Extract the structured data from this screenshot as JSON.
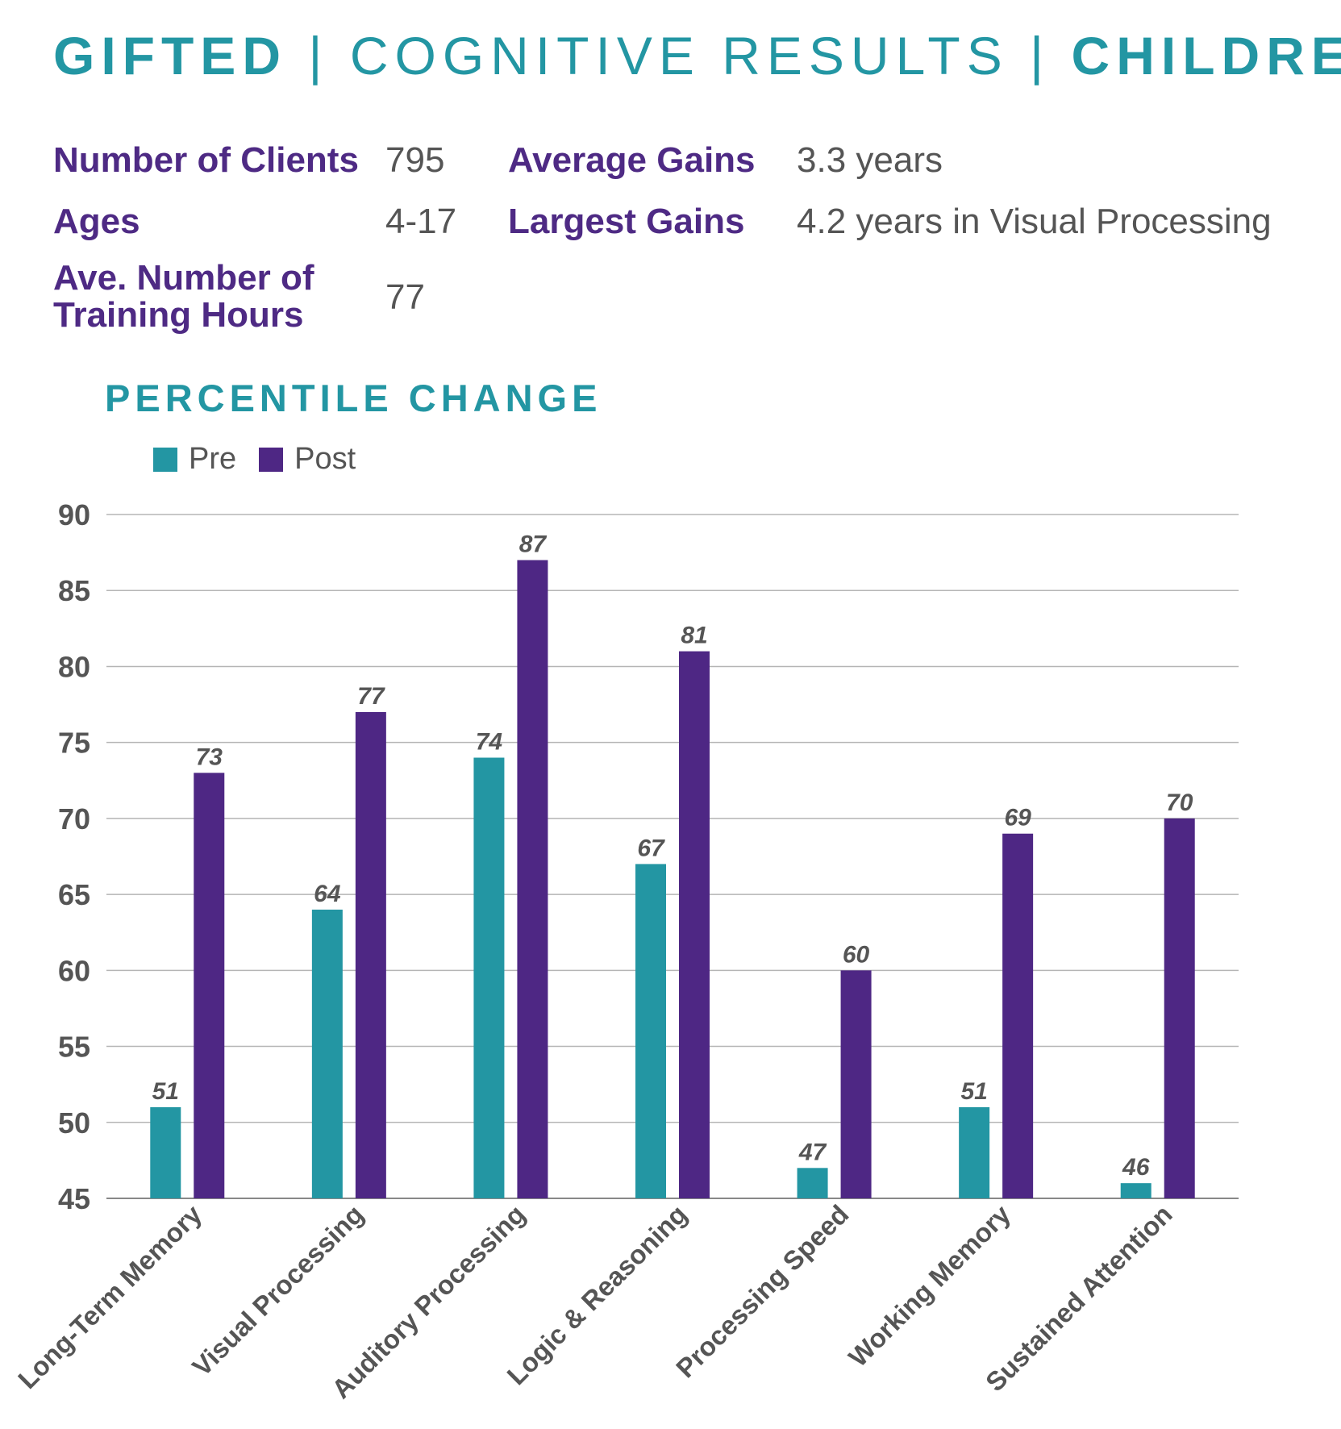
{
  "header": {
    "part1": "GIFTED",
    "sep1": " | ",
    "part2": "COGNITIVE RESULTS",
    "sep2": " | ",
    "part3": "CHILDREN"
  },
  "stats": {
    "clients_label": "Number of Clients",
    "clients_value": "795",
    "ages_label": "Ages",
    "ages_value": "4-17",
    "hours_label_line1": "Ave. Number of",
    "hours_label_line2": "Training Hours",
    "hours_value": "77",
    "avg_gains_label": "Average Gains",
    "avg_gains_value": "3.3 years",
    "largest_gains_label": "Largest Gains",
    "largest_gains_value": "4.2 years in Visual Processing"
  },
  "colors": {
    "pre": "#2396a3",
    "post": "#4e2784",
    "accent": "#2396a3",
    "label": "#4e2a84"
  },
  "chart_data": {
    "type": "bar",
    "title": "PERCENTILE CHANGE",
    "categories": [
      "Long-Term Memory",
      "Visual Processing",
      "Auditory Processing",
      "Logic & Reasoning",
      "Processing Speed",
      "Working Memory",
      "Sustained Attention"
    ],
    "series": [
      {
        "name": "Pre",
        "values": [
          51,
          64,
          74,
          67,
          47,
          51,
          46
        ]
      },
      {
        "name": "Post",
        "values": [
          73,
          77,
          87,
          81,
          60,
          69,
          70
        ]
      }
    ],
    "ylim": [
      45,
      90
    ],
    "yticks": [
      90,
      85,
      80,
      75,
      70,
      65,
      60,
      55,
      50,
      45
    ],
    "grid": true,
    "legend": "top-left"
  }
}
